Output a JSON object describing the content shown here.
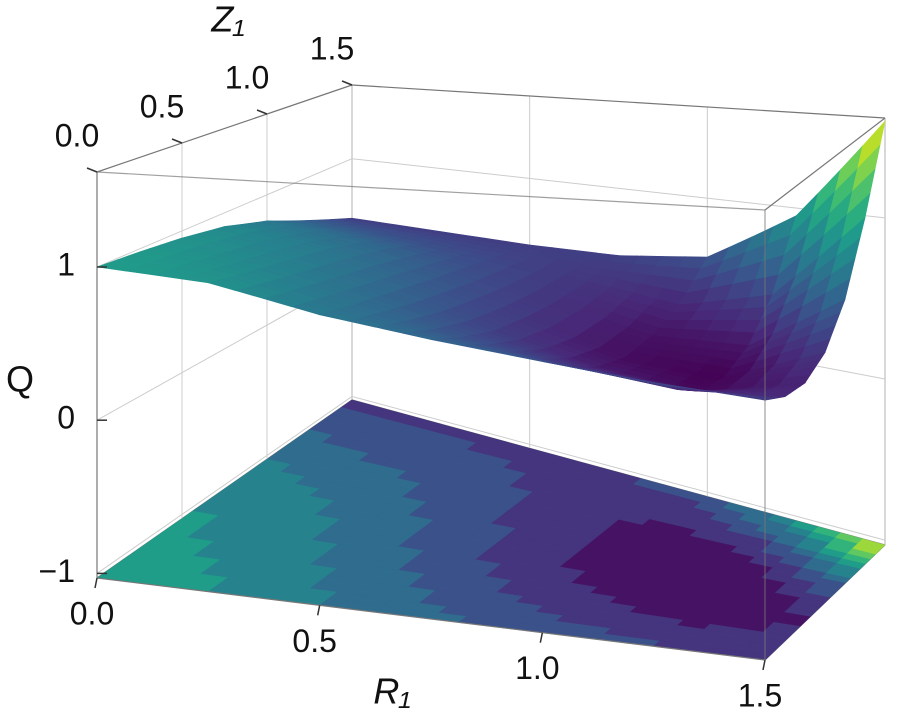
{
  "chart_data": {
    "type": "surface3d",
    "xlabel": "R₁",
    "ylabel": "Z₁",
    "zlabel": "Q",
    "x": [
      0,
      0.25,
      0.5,
      0.75,
      1,
      1.25,
      1.5
    ],
    "y": [
      0,
      0.25,
      0.5,
      0.75,
      1,
      1.25,
      1.5
    ],
    "z": [
      [
        1.0,
        0.98,
        0.95,
        0.9,
        0.8,
        0.65,
        0.5
      ],
      [
        0.95,
        0.9,
        0.85,
        0.8,
        0.72,
        0.6,
        0.5
      ],
      [
        0.8,
        0.75,
        0.7,
        0.65,
        0.6,
        0.55,
        0.5
      ],
      [
        0.7,
        0.6,
        0.52,
        0.48,
        0.46,
        0.47,
        0.52
      ],
      [
        0.62,
        0.48,
        0.36,
        0.3,
        0.32,
        0.4,
        0.6
      ],
      [
        0.55,
        0.4,
        0.28,
        0.26,
        0.34,
        0.55,
        0.95
      ],
      [
        0.5,
        0.42,
        0.4,
        0.48,
        0.7,
        1.1,
        1.6
      ]
    ],
    "xlim": [
      0,
      1.5
    ],
    "ylim": [
      0,
      1.5
    ],
    "zlim": [
      -1.03,
      1.62
    ],
    "xticks": [
      {
        "value": 0,
        "label": "0.0"
      },
      {
        "value": 0.5,
        "label": "0.5"
      },
      {
        "value": 1,
        "label": "1.0"
      },
      {
        "value": 1.5,
        "label": "1.5"
      }
    ],
    "yticks": [
      {
        "value": 0,
        "label": "0.0"
      },
      {
        "value": 0.5,
        "label": "0.5"
      },
      {
        "value": 1,
        "label": "1.0"
      },
      {
        "value": 1.5,
        "label": "1.5"
      }
    ],
    "zticks": [
      {
        "value": -1,
        "label": "−1"
      },
      0,
      1
    ],
    "colormap": "viridis",
    "contour_projection": true,
    "grid": true
  }
}
